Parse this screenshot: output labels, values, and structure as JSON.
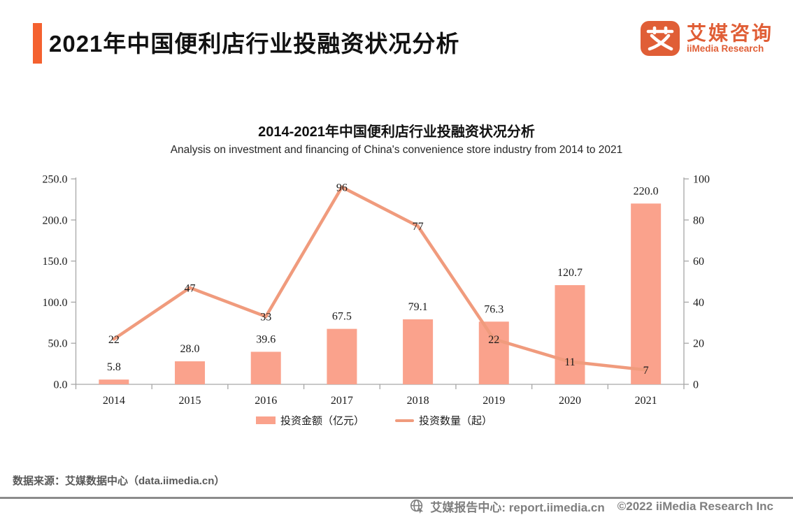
{
  "header": {
    "title": "2021年中国便利店行业投融资状况分析"
  },
  "logo": {
    "glyph": "艾",
    "name_cn": "艾媒咨询",
    "name_en": "iiMedia Research"
  },
  "chart_data": {
    "type": "bar+line",
    "title": "2014-2021年中国便利店行业投融资状况分析",
    "subtitle": "Analysis on investment and financing of China's convenience store industry from 2014 to 2021",
    "categories": [
      "2014",
      "2015",
      "2016",
      "2017",
      "2018",
      "2019",
      "2020",
      "2021"
    ],
    "series": [
      {
        "name": "投资金额（亿元）",
        "type": "bar",
        "axis": "left",
        "values": [
          5.8,
          28.0,
          39.6,
          67.5,
          79.1,
          76.3,
          120.7,
          220.0
        ],
        "labels": [
          "5.8",
          "28.0",
          "39.6",
          "67.5",
          "79.1",
          "76.3",
          "120.7",
          "220.0"
        ],
        "color": "#FAA28C"
      },
      {
        "name": "投资数量（起）",
        "type": "line",
        "axis": "right",
        "values": [
          22,
          47,
          33,
          96,
          77,
          22,
          11,
          7
        ],
        "labels": [
          "22",
          "47",
          "33",
          "96",
          "77",
          "22",
          "11",
          "7"
        ],
        "color": "#F09B7D"
      }
    ],
    "left_axis": {
      "min": 0,
      "max": 250,
      "step": 50,
      "tick_labels": [
        "0.0",
        "50.0",
        "100.0",
        "150.0",
        "200.0",
        "250.0"
      ]
    },
    "right_axis": {
      "min": 0,
      "max": 100,
      "step": 20,
      "tick_labels": [
        "0",
        "20",
        "40",
        "60",
        "80",
        "100"
      ]
    },
    "grid": false,
    "legend_position": "bottom"
  },
  "footer": {
    "source": "数据来源：艾媒数据中心（data.iimedia.cn）"
  },
  "bottom_bar": {
    "site_label": "艾媒报告中心: report.iimedia.cn",
    "copyright": "©2022  iiMedia Research  Inc"
  },
  "colors": {
    "accent": "#F4612F",
    "logo": "#E05E36",
    "bar": "#FAA28C",
    "line": "#F09B7D",
    "axis": "#A6A6A6",
    "source_text": "#595959",
    "bottom_rule": "#8C8C8C",
    "bottom_text": "#7F7F7F"
  }
}
